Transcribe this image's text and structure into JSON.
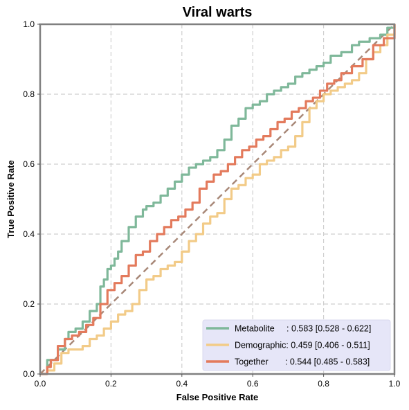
{
  "chart_data": {
    "type": "line",
    "title": "Viral warts",
    "xlabel": "False Positive Rate",
    "ylabel": "True Positive Rate",
    "xlim": [
      0.0,
      1.0
    ],
    "ylim": [
      0.0,
      1.0
    ],
    "xticks": [
      "0.0",
      "0.2",
      "0.4",
      "0.6",
      "0.8",
      "1.0"
    ],
    "yticks": [
      "0.0",
      "0.2",
      "0.4",
      "0.6",
      "0.8",
      "1.0"
    ],
    "grid": true,
    "legend_position": "bottom-right",
    "legend_background": "#e6e6f8",
    "diagonal": {
      "x": [
        0,
        1
      ],
      "y": [
        0,
        1
      ],
      "color": "#a88878",
      "style": "dashed"
    },
    "series": [
      {
        "name": "Metabolite",
        "legend_label": "Metabolite     : 0.583 [0.528 - 0.622]",
        "color": "#7fb89a",
        "x": [
          0,
          0.01,
          0.02,
          0.02,
          0.04,
          0.05,
          0.07,
          0.08,
          0.1,
          0.12,
          0.14,
          0.16,
          0.17,
          0.18,
          0.19,
          0.2,
          0.21,
          0.22,
          0.23,
          0.25,
          0.27,
          0.29,
          0.3,
          0.32,
          0.34,
          0.36,
          0.38,
          0.4,
          0.42,
          0.44,
          0.46,
          0.48,
          0.5,
          0.52,
          0.54,
          0.56,
          0.58,
          0.6,
          0.62,
          0.64,
          0.66,
          0.68,
          0.7,
          0.72,
          0.74,
          0.76,
          0.78,
          0.8,
          0.82,
          0.85,
          0.88,
          0.9,
          0.93,
          0.96,
          0.98,
          1.0
        ],
        "y": [
          0,
          0.0,
          0.02,
          0.04,
          0.04,
          0.07,
          0.1,
          0.12,
          0.13,
          0.15,
          0.18,
          0.2,
          0.25,
          0.27,
          0.3,
          0.31,
          0.33,
          0.35,
          0.38,
          0.42,
          0.45,
          0.47,
          0.48,
          0.49,
          0.51,
          0.53,
          0.55,
          0.57,
          0.59,
          0.6,
          0.61,
          0.62,
          0.64,
          0.67,
          0.71,
          0.73,
          0.76,
          0.77,
          0.78,
          0.8,
          0.81,
          0.82,
          0.83,
          0.85,
          0.86,
          0.87,
          0.88,
          0.89,
          0.91,
          0.92,
          0.94,
          0.95,
          0.96,
          0.97,
          0.99,
          1.0
        ]
      },
      {
        "name": "Demographic",
        "legend_label": "Demographic: 0.459 [0.406 - 0.511]",
        "color": "#f2cb88",
        "x": [
          0,
          0.02,
          0.04,
          0.06,
          0.08,
          0.1,
          0.12,
          0.14,
          0.16,
          0.18,
          0.2,
          0.22,
          0.24,
          0.26,
          0.28,
          0.3,
          0.32,
          0.34,
          0.36,
          0.38,
          0.4,
          0.42,
          0.44,
          0.46,
          0.48,
          0.5,
          0.52,
          0.54,
          0.56,
          0.58,
          0.6,
          0.62,
          0.64,
          0.66,
          0.68,
          0.7,
          0.72,
          0.74,
          0.76,
          0.78,
          0.8,
          0.82,
          0.84,
          0.86,
          0.88,
          0.9,
          0.92,
          0.94,
          0.96,
          0.98,
          1.0
        ],
        "y": [
          0,
          0.01,
          0.03,
          0.06,
          0.07,
          0.07,
          0.08,
          0.1,
          0.11,
          0.13,
          0.15,
          0.17,
          0.18,
          0.2,
          0.24,
          0.27,
          0.28,
          0.3,
          0.31,
          0.32,
          0.35,
          0.38,
          0.4,
          0.43,
          0.45,
          0.46,
          0.5,
          0.53,
          0.54,
          0.56,
          0.57,
          0.6,
          0.61,
          0.62,
          0.64,
          0.65,
          0.68,
          0.72,
          0.76,
          0.78,
          0.8,
          0.81,
          0.82,
          0.83,
          0.84,
          0.86,
          0.9,
          0.92,
          0.94,
          0.97,
          1.0
        ]
      },
      {
        "name": "Together",
        "legend_label": "Together       : 0.544 [0.485 - 0.583]",
        "color": "#e37a5c",
        "x": [
          0,
          0.02,
          0.03,
          0.05,
          0.07,
          0.09,
          0.11,
          0.13,
          0.15,
          0.17,
          0.19,
          0.21,
          0.23,
          0.25,
          0.27,
          0.29,
          0.31,
          0.33,
          0.35,
          0.37,
          0.39,
          0.41,
          0.43,
          0.45,
          0.47,
          0.49,
          0.51,
          0.53,
          0.55,
          0.57,
          0.59,
          0.61,
          0.63,
          0.65,
          0.67,
          0.69,
          0.71,
          0.73,
          0.75,
          0.77,
          0.79,
          0.81,
          0.83,
          0.85,
          0.88,
          0.91,
          0.94,
          0.97,
          1.0
        ],
        "y": [
          0,
          0.02,
          0.04,
          0.08,
          0.1,
          0.11,
          0.12,
          0.14,
          0.16,
          0.2,
          0.24,
          0.26,
          0.28,
          0.31,
          0.34,
          0.35,
          0.38,
          0.4,
          0.42,
          0.44,
          0.45,
          0.47,
          0.49,
          0.53,
          0.55,
          0.57,
          0.58,
          0.6,
          0.62,
          0.64,
          0.65,
          0.67,
          0.68,
          0.7,
          0.72,
          0.73,
          0.75,
          0.76,
          0.78,
          0.79,
          0.81,
          0.83,
          0.84,
          0.86,
          0.88,
          0.9,
          0.94,
          0.96,
          1.0
        ]
      }
    ]
  }
}
